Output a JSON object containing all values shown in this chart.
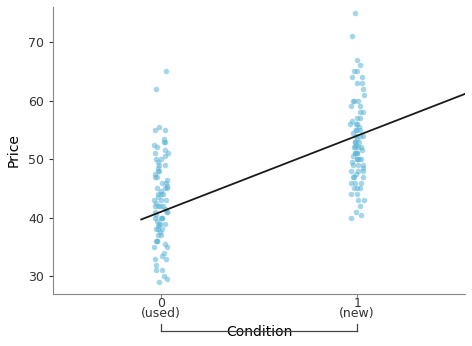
{
  "title": "",
  "xlabel": "Condition",
  "ylabel": "Price",
  "point_color": "#5ab4d6",
  "point_alpha": 0.55,
  "point_size": 16,
  "line_color": "#1a1a1a",
  "line_width": 1.3,
  "ylim": [
    27,
    76
  ],
  "yticks": [
    30,
    40,
    50,
    60,
    70
  ],
  "xlim": [
    -0.55,
    1.55
  ],
  "xtick_positions": [
    0,
    1
  ],
  "ls_intercept": 41.0,
  "ls_slope": 13.0,
  "line_x_start": -0.1,
  "line_x_end": 1.55,
  "used_prices": [
    29,
    29.5,
    30,
    31,
    31,
    32,
    33,
    33,
    33.5,
    34,
    35,
    35,
    35.5,
    36,
    36,
    36,
    37,
    37,
    37.5,
    38,
    38,
    38,
    38.5,
    39,
    39,
    39,
    39.5,
    40,
    40,
    40,
    40,
    40.5,
    41,
    41,
    41,
    41.5,
    42,
    42,
    42,
    42,
    42.5,
    43,
    43,
    43,
    43.5,
    44,
    44,
    44,
    44.5,
    45,
    45,
    45,
    45.5,
    46,
    46,
    46.5,
    47,
    47,
    47.5,
    48,
    48,
    48.5,
    49,
    49,
    49.5,
    50,
    50,
    50.5,
    51,
    51,
    51.5,
    52,
    52.5,
    53,
    53,
    53.5,
    55,
    55,
    55.5,
    62,
    65
  ],
  "new_prices": [
    40,
    40.5,
    41,
    42,
    43,
    43,
    44,
    44,
    45,
    45,
    45,
    46,
    46,
    46,
    47,
    47,
    47,
    47.5,
    48,
    48,
    48,
    48.5,
    49,
    49,
    49,
    49.5,
    50,
    50,
    50,
    50,
    50.5,
    51,
    51,
    51,
    51,
    51.5,
    52,
    52,
    52,
    52,
    52.5,
    53,
    53,
    53,
    53.5,
    54,
    54,
    54,
    54.5,
    55,
    55,
    55,
    55.5,
    56,
    56,
    56,
    56.5,
    57,
    57,
    58,
    58,
    59,
    59,
    60,
    60,
    60,
    61,
    62,
    63,
    63,
    64,
    64,
    65,
    65,
    66,
    67,
    71,
    75
  ],
  "jitter_seed_used": 42,
  "jitter_seed_new": 7,
  "jitter_amount": 0.035,
  "background_color": "#ffffff",
  "bracket_color": "#444444",
  "spine_color": "#888888"
}
